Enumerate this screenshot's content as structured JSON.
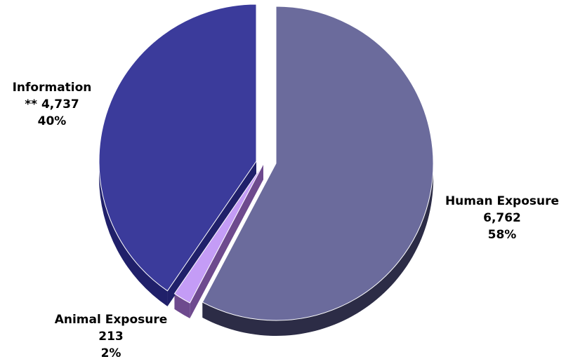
{
  "chart_data": {
    "type": "pie",
    "style": "3d-exploded",
    "slices": [
      {
        "name": "Human Exposure",
        "value_text": "6,762",
        "percent_text": "58%",
        "value": 6762,
        "percent": 58,
        "color": "#6b6b9c",
        "side_color": "#2c2c46"
      },
      {
        "name": "Animal Exposure",
        "value_text": "213",
        "percent_text": "2%",
        "value": 213,
        "percent": 2,
        "color": "#c49cf6",
        "side_color": "#6e4a8e"
      },
      {
        "name": "Information",
        "value_text": "** 4,737",
        "percent_text": "40%",
        "value": 4737,
        "percent": 40,
        "color": "#3b3b9b",
        "side_color": "#20206a"
      }
    ]
  }
}
